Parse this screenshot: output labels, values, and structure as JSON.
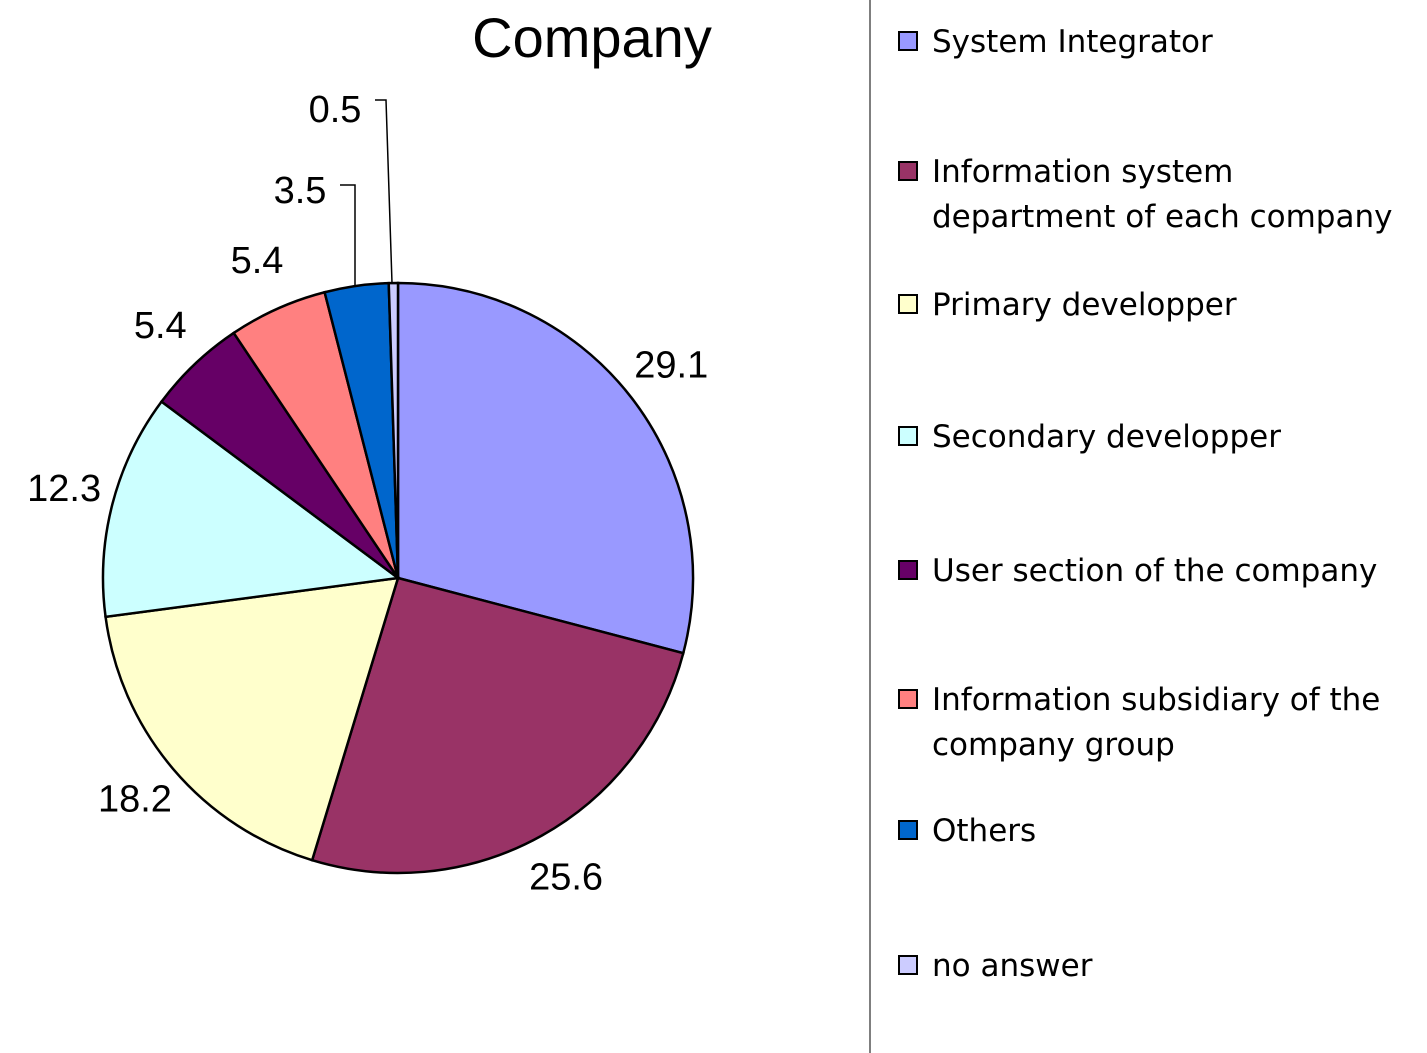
{
  "chart_data": {
    "type": "pie",
    "title": "Company",
    "categories": [
      "System Integrator",
      "Information system department of each company",
      "Primary developper",
      "Secondary developper",
      "User section of the company",
      "Information subsidiary of the company group",
      "Others",
      "no answer"
    ],
    "values": [
      29.1,
      25.6,
      18.2,
      12.3,
      5.4,
      5.4,
      3.5,
      0.5
    ],
    "colors": [
      "#9999ff",
      "#993366",
      "#ffffcc",
      "#ccffff",
      "#660066",
      "#ff8080",
      "#0066cc",
      "#ccccff"
    ],
    "legend": "right"
  }
}
